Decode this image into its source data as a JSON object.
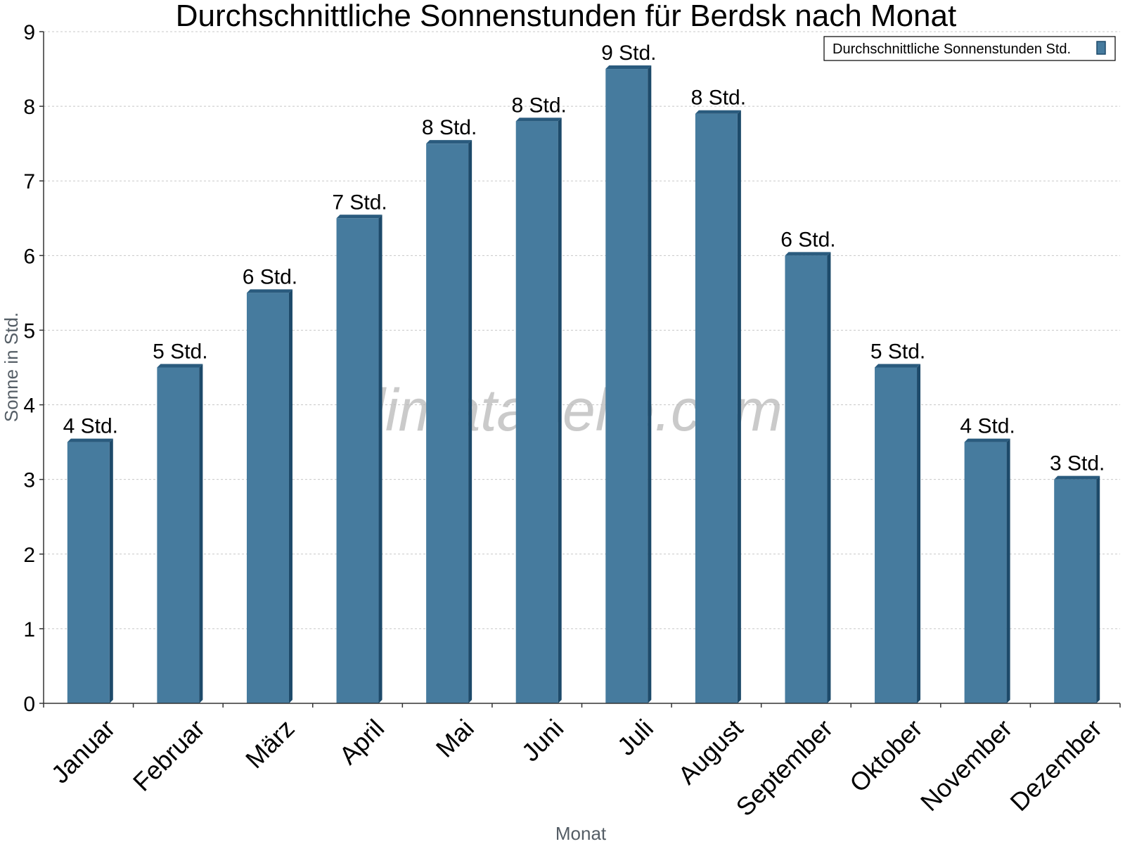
{
  "watermark": "klimatabelle.com",
  "colors": {
    "bar_front": "#467b9e",
    "bar_side": "#1d4a6a",
    "bar_top": "#2a5b7e"
  },
  "chart_data": {
    "type": "bar",
    "title": "Durchschnittliche Sonnenstunden für Berdsk nach Monat",
    "xlabel": "Monat",
    "ylabel": "Sonne in Std.",
    "ylim": [
      0,
      9
    ],
    "yticks": [
      0,
      1,
      2,
      3,
      4,
      5,
      6,
      7,
      8,
      9
    ],
    "grid": true,
    "legend_position": "top-right",
    "categories": [
      "Januar",
      "Februar",
      "März",
      "April",
      "Mai",
      "Juni",
      "Juli",
      "August",
      "September",
      "Oktober",
      "November",
      "Dezember"
    ],
    "series": [
      {
        "name": "Durchschnittliche Sonnenstunden Std.",
        "values": [
          3.5,
          4.5,
          5.5,
          6.5,
          7.5,
          7.8,
          8.5,
          7.9,
          6.0,
          4.5,
          3.5,
          3.0
        ],
        "labels": [
          "4 Std.",
          "5 Std.",
          "6 Std.",
          "7 Std.",
          "8 Std.",
          "8 Std.",
          "9 Std.",
          "8 Std.",
          "6 Std.",
          "5 Std.",
          "4 Std.",
          "3 Std."
        ]
      }
    ]
  }
}
